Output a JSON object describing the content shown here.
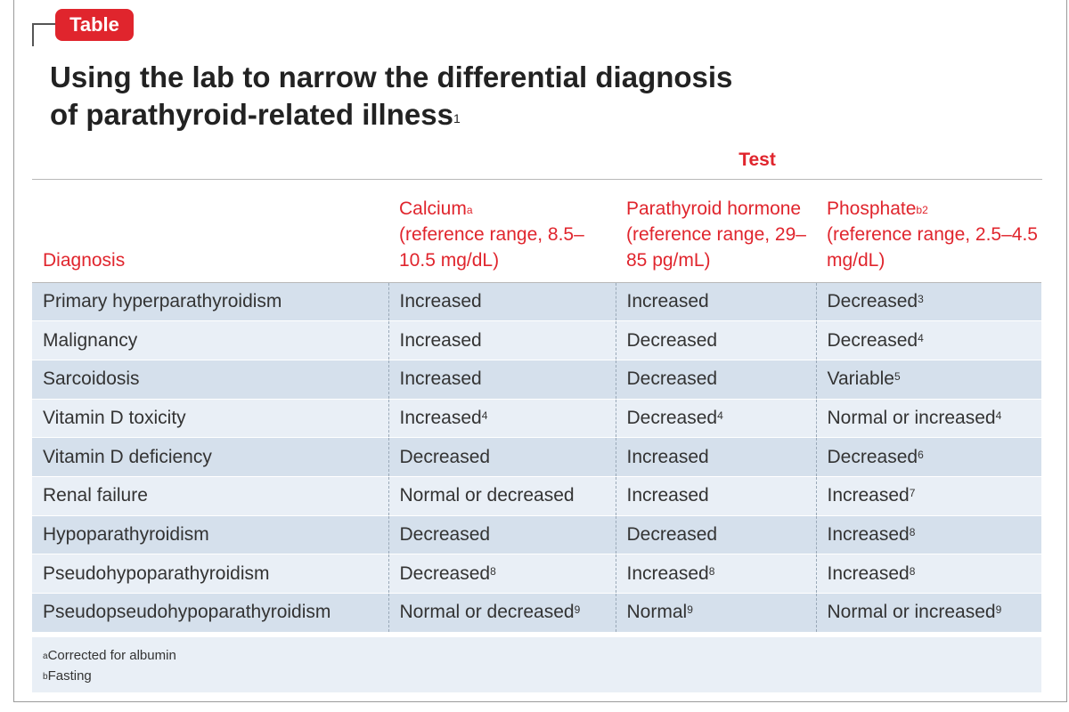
{
  "badge": "Table",
  "title": {
    "line1": "Using the lab to narrow the differential diagnosis",
    "line2": "of parathyroid-related illness",
    "ref": "1"
  },
  "test_label": "Test",
  "columns": [
    {
      "label": "Diagnosis",
      "sup": "",
      "extra": ""
    },
    {
      "label": "Calcium",
      "sup": "a",
      "extra": "(reference range, 8.5–10.5 mg/dL)"
    },
    {
      "label": "Parathyroid hormone",
      "sup": "",
      "extra": "(reference range, 29–85 pg/mL)"
    },
    {
      "label": "Phosphate",
      "sup": "b2",
      "extra": "(reference range, 2.5–4.5 mg/dL)"
    }
  ],
  "rows": [
    {
      "diagnosis": "Primary hyperparathyroidism",
      "cells": [
        {
          "v": "Increased",
          "s": ""
        },
        {
          "v": "Increased",
          "s": ""
        },
        {
          "v": "Decreased",
          "s": "3"
        }
      ]
    },
    {
      "diagnosis": "Malignancy",
      "cells": [
        {
          "v": "Increased",
          "s": ""
        },
        {
          "v": "Decreased",
          "s": ""
        },
        {
          "v": "Decreased",
          "s": "4"
        }
      ]
    },
    {
      "diagnosis": "Sarcoidosis",
      "cells": [
        {
          "v": "Increased",
          "s": ""
        },
        {
          "v": "Decreased",
          "s": ""
        },
        {
          "v": "Variable",
          "s": "5"
        }
      ]
    },
    {
      "diagnosis": "Vitamin D toxicity",
      "cells": [
        {
          "v": "Increased",
          "s": "4"
        },
        {
          "v": "Decreased",
          "s": "4"
        },
        {
          "v": "Normal or increased",
          "s": "4"
        }
      ]
    },
    {
      "diagnosis": "Vitamin D deficiency",
      "cells": [
        {
          "v": "Decreased",
          "s": ""
        },
        {
          "v": "Increased",
          "s": ""
        },
        {
          "v": "Decreased",
          "s": "6"
        }
      ]
    },
    {
      "diagnosis": "Renal failure",
      "cells": [
        {
          "v": "Normal or decreased",
          "s": ""
        },
        {
          "v": "Increased",
          "s": ""
        },
        {
          "v": "Increased",
          "s": "7"
        }
      ]
    },
    {
      "diagnosis": "Hypoparathyroidism",
      "cells": [
        {
          "v": "Decreased",
          "s": ""
        },
        {
          "v": "Decreased",
          "s": ""
        },
        {
          "v": "Increased",
          "s": "8"
        }
      ]
    },
    {
      "diagnosis": "Pseudohypoparathyroidism",
      "cells": [
        {
          "v": "Decreased",
          "s": "8"
        },
        {
          "v": "Increased",
          "s": "8"
        },
        {
          "v": "Increased",
          "s": "8"
        }
      ]
    },
    {
      "diagnosis": "Pseudopseudohypoparathyroidism",
      "cells": [
        {
          "v": "Normal or decreased",
          "s": "9"
        },
        {
          "v": "Normal",
          "s": "9"
        },
        {
          "v": "Normal or increased",
          "s": "9"
        }
      ]
    }
  ],
  "footnotes": [
    {
      "mark": "a",
      "text": "Corrected for albumin"
    },
    {
      "mark": "b",
      "text": "Fasting"
    }
  ],
  "colors": {
    "accent": "#e0252d",
    "row_dark": "#d5e0ec",
    "row_light": "#e9eff6"
  }
}
